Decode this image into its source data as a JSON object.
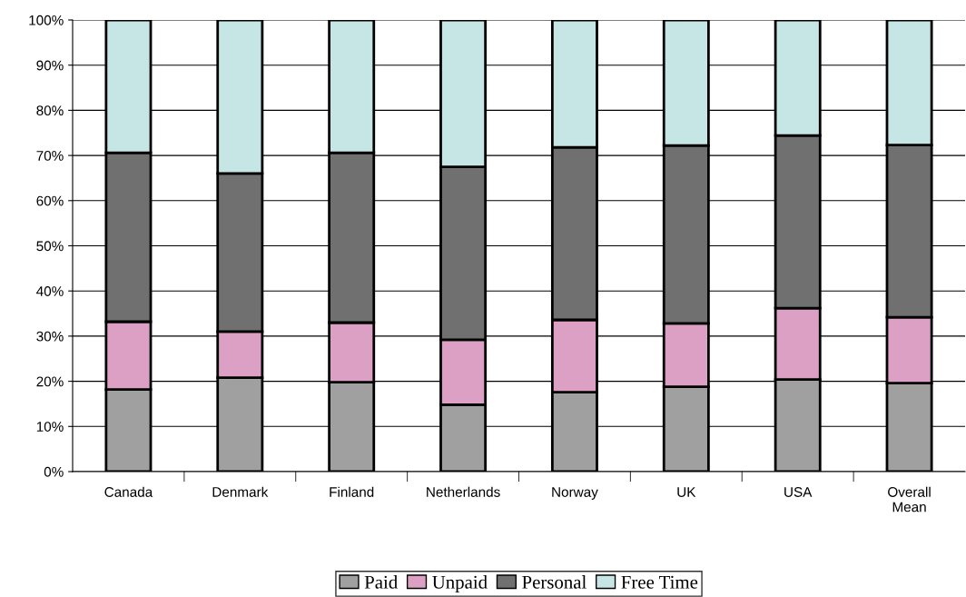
{
  "chart_data": {
    "type": "bar",
    "stacked": true,
    "categories": [
      "Canada",
      "Denmark",
      "Finland",
      "Netherlands",
      "Norway",
      "UK",
      "USA",
      "Overall\nMean"
    ],
    "series": [
      {
        "name": "Paid",
        "color": "#a0a0a0",
        "values": [
          18.2,
          20.8,
          19.8,
          14.8,
          17.6,
          18.8,
          20.4,
          19.6
        ]
      },
      {
        "name": "Unpaid",
        "color": "#dca0c4",
        "values": [
          15.0,
          10.2,
          13.2,
          14.4,
          16.0,
          14.0,
          15.8,
          14.6
        ]
      },
      {
        "name": "Personal",
        "color": "#707070",
        "values": [
          37.4,
          35.0,
          37.6,
          38.3,
          38.2,
          39.4,
          38.2,
          38.1
        ]
      },
      {
        "name": "Free Time",
        "color": "#c6e6e6",
        "values": [
          29.4,
          34.0,
          29.4,
          32.5,
          28.2,
          27.8,
          25.6,
          27.7
        ]
      }
    ],
    "ylim": [
      0,
      100
    ],
    "yticks": [
      {
        "value": 0,
        "label": "0%"
      },
      {
        "value": 10,
        "label": "10%"
      },
      {
        "value": 20,
        "label": "20%"
      },
      {
        "value": 30,
        "label": "30%"
      },
      {
        "value": 40,
        "label": "40%"
      },
      {
        "value": 50,
        "label": "50%"
      },
      {
        "value": 60,
        "label": "60%"
      },
      {
        "value": 70,
        "label": "70%"
      },
      {
        "value": 80,
        "label": "80%"
      },
      {
        "value": 90,
        "label": "90%"
      },
      {
        "value": 100,
        "label": "100%"
      }
    ],
    "grid": "y",
    "legend": "bottom"
  }
}
